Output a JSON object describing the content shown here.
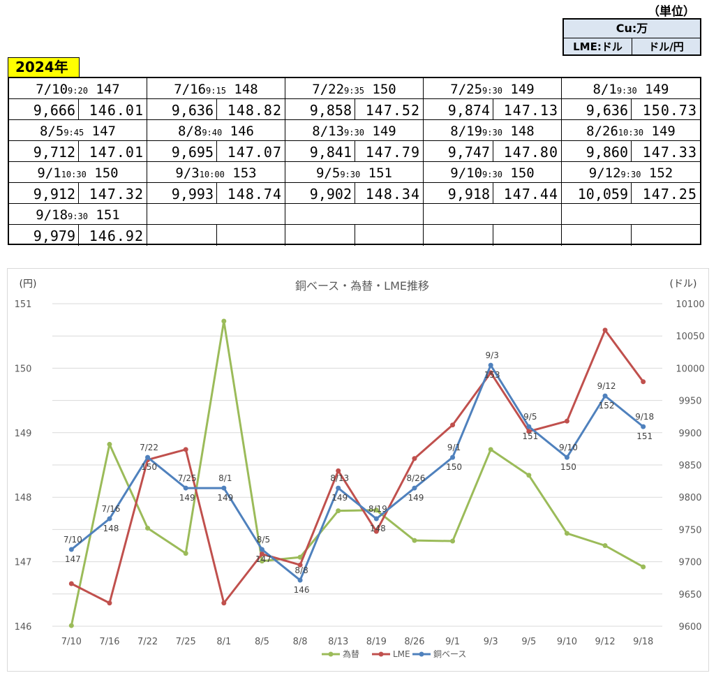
{
  "unit": {
    "label": "（単位）",
    "cu": "Cu:万",
    "lme": "LME:ドル",
    "fx": "ドル/円"
  },
  "year_label": "2024年",
  "entries": [
    {
      "date": "7/10",
      "time": "9:20",
      "price": "147",
      "lme": "9,666",
      "fx": "146.01"
    },
    {
      "date": "7/16",
      "time": "9:15",
      "price": "148",
      "lme": "9,636",
      "fx": "148.82"
    },
    {
      "date": "7/22",
      "time": "9:35",
      "price": "150",
      "lme": "9,858",
      "fx": "147.52"
    },
    {
      "date": "7/25",
      "time": "9:30",
      "price": "149",
      "lme": "9,874",
      "fx": "147.13"
    },
    {
      "date": "8/1",
      "time": "9:30",
      "price": "149",
      "lme": "9,636",
      "fx": "150.73"
    },
    {
      "date": "8/5",
      "time": "9:45",
      "price": "147",
      "lme": "9,712",
      "fx": "147.01"
    },
    {
      "date": "8/8",
      "time": "9:40",
      "price": "146",
      "lme": "9,695",
      "fx": "147.07"
    },
    {
      "date": "8/13",
      "time": "9:30",
      "price": "149",
      "lme": "9,841",
      "fx": "147.79"
    },
    {
      "date": "8/19",
      "time": "9:30",
      "price": "148",
      "lme": "9,747",
      "fx": "147.80"
    },
    {
      "date": "8/26",
      "time": "10:30",
      "price": "149",
      "lme": "9,860",
      "fx": "147.33"
    },
    {
      "date": "9/1",
      "time": "10:30",
      "price": "150",
      "lme": "9,912",
      "fx": "147.32"
    },
    {
      "date": "9/3",
      "time": "10:00",
      "price": "153",
      "lme": "9,993",
      "fx": "148.74"
    },
    {
      "date": "9/5",
      "time": "9:30",
      "price": "151",
      "lme": "9,902",
      "fx": "148.34"
    },
    {
      "date": "9/10",
      "time": "9:30",
      "price": "150",
      "lme": "9,918",
      "fx": "147.44"
    },
    {
      "date": "9/12",
      "time": "9:30",
      "price": "152",
      "lme": "10,059",
      "fx": "147.25"
    },
    {
      "date": "9/18",
      "time": "9:30",
      "price": "151",
      "lme": "9,979",
      "fx": "146.92"
    }
  ],
  "chart_data": {
    "type": "line",
    "title": "銅ベース・為替・LME推移",
    "y_left_label": "(円)",
    "y_right_label": "(ドル)",
    "categories": [
      "7/10",
      "7/16",
      "7/22",
      "7/25",
      "8/1",
      "8/5",
      "8/8",
      "8/13",
      "8/19",
      "8/26",
      "9/1",
      "9/3",
      "9/5",
      "9/10",
      "9/12",
      "9/18"
    ],
    "y_left_ticks": [
      "146",
      "147",
      "148",
      "149",
      "150",
      "151"
    ],
    "y_left_range": [
      146,
      151
    ],
    "y_right_ticks": [
      "9600",
      "9650",
      "9700",
      "9750",
      "9800",
      "9850",
      "9900",
      "9950",
      "10000",
      "10050",
      "10100"
    ],
    "y_right_range": [
      9600,
      10100
    ],
    "series": [
      {
        "name": "為替",
        "axis": "left",
        "color": "#9bbb59",
        "values": [
          146.01,
          148.82,
          147.52,
          147.13,
          150.73,
          147.01,
          147.07,
          147.79,
          147.8,
          147.33,
          147.32,
          148.74,
          148.34,
          147.44,
          147.25,
          146.92
        ]
      },
      {
        "name": "LME",
        "axis": "right",
        "color": "#c0504d",
        "values": [
          9666,
          9636,
          9858,
          9874,
          9636,
          9712,
          9695,
          9841,
          9747,
          9860,
          9912,
          9993,
          9902,
          9918,
          10059,
          9979
        ]
      },
      {
        "name": "銅ベース",
        "axis": "right-scaled",
        "color": "#4f81bd",
        "values": [
          147,
          148,
          150,
          149,
          149,
          147,
          146,
          149,
          148,
          149,
          150,
          153,
          151,
          150,
          152,
          151
        ],
        "point_labels": [
          [
            "7/10",
            "147"
          ],
          [
            "7/16",
            "148"
          ],
          [
            "7/22",
            "150"
          ],
          [
            "7/25",
            "149"
          ],
          [
            "8/1",
            "149"
          ],
          [
            "8/5",
            "147"
          ],
          [
            "8/8",
            "146"
          ],
          [
            "8/13",
            "149"
          ],
          [
            "8/19",
            "148"
          ],
          [
            "8/26",
            "149"
          ],
          [
            "9/1",
            "150"
          ],
          [
            "9/3",
            "153"
          ],
          [
            "9/5",
            "151"
          ],
          [
            "9/10",
            "150"
          ],
          [
            "9/12",
            "152"
          ],
          [
            "9/18",
            "151"
          ]
        ]
      }
    ],
    "legend": [
      "為替",
      "LME",
      "銅ベース"
    ],
    "legend_position": "bottom",
    "grid": true
  }
}
